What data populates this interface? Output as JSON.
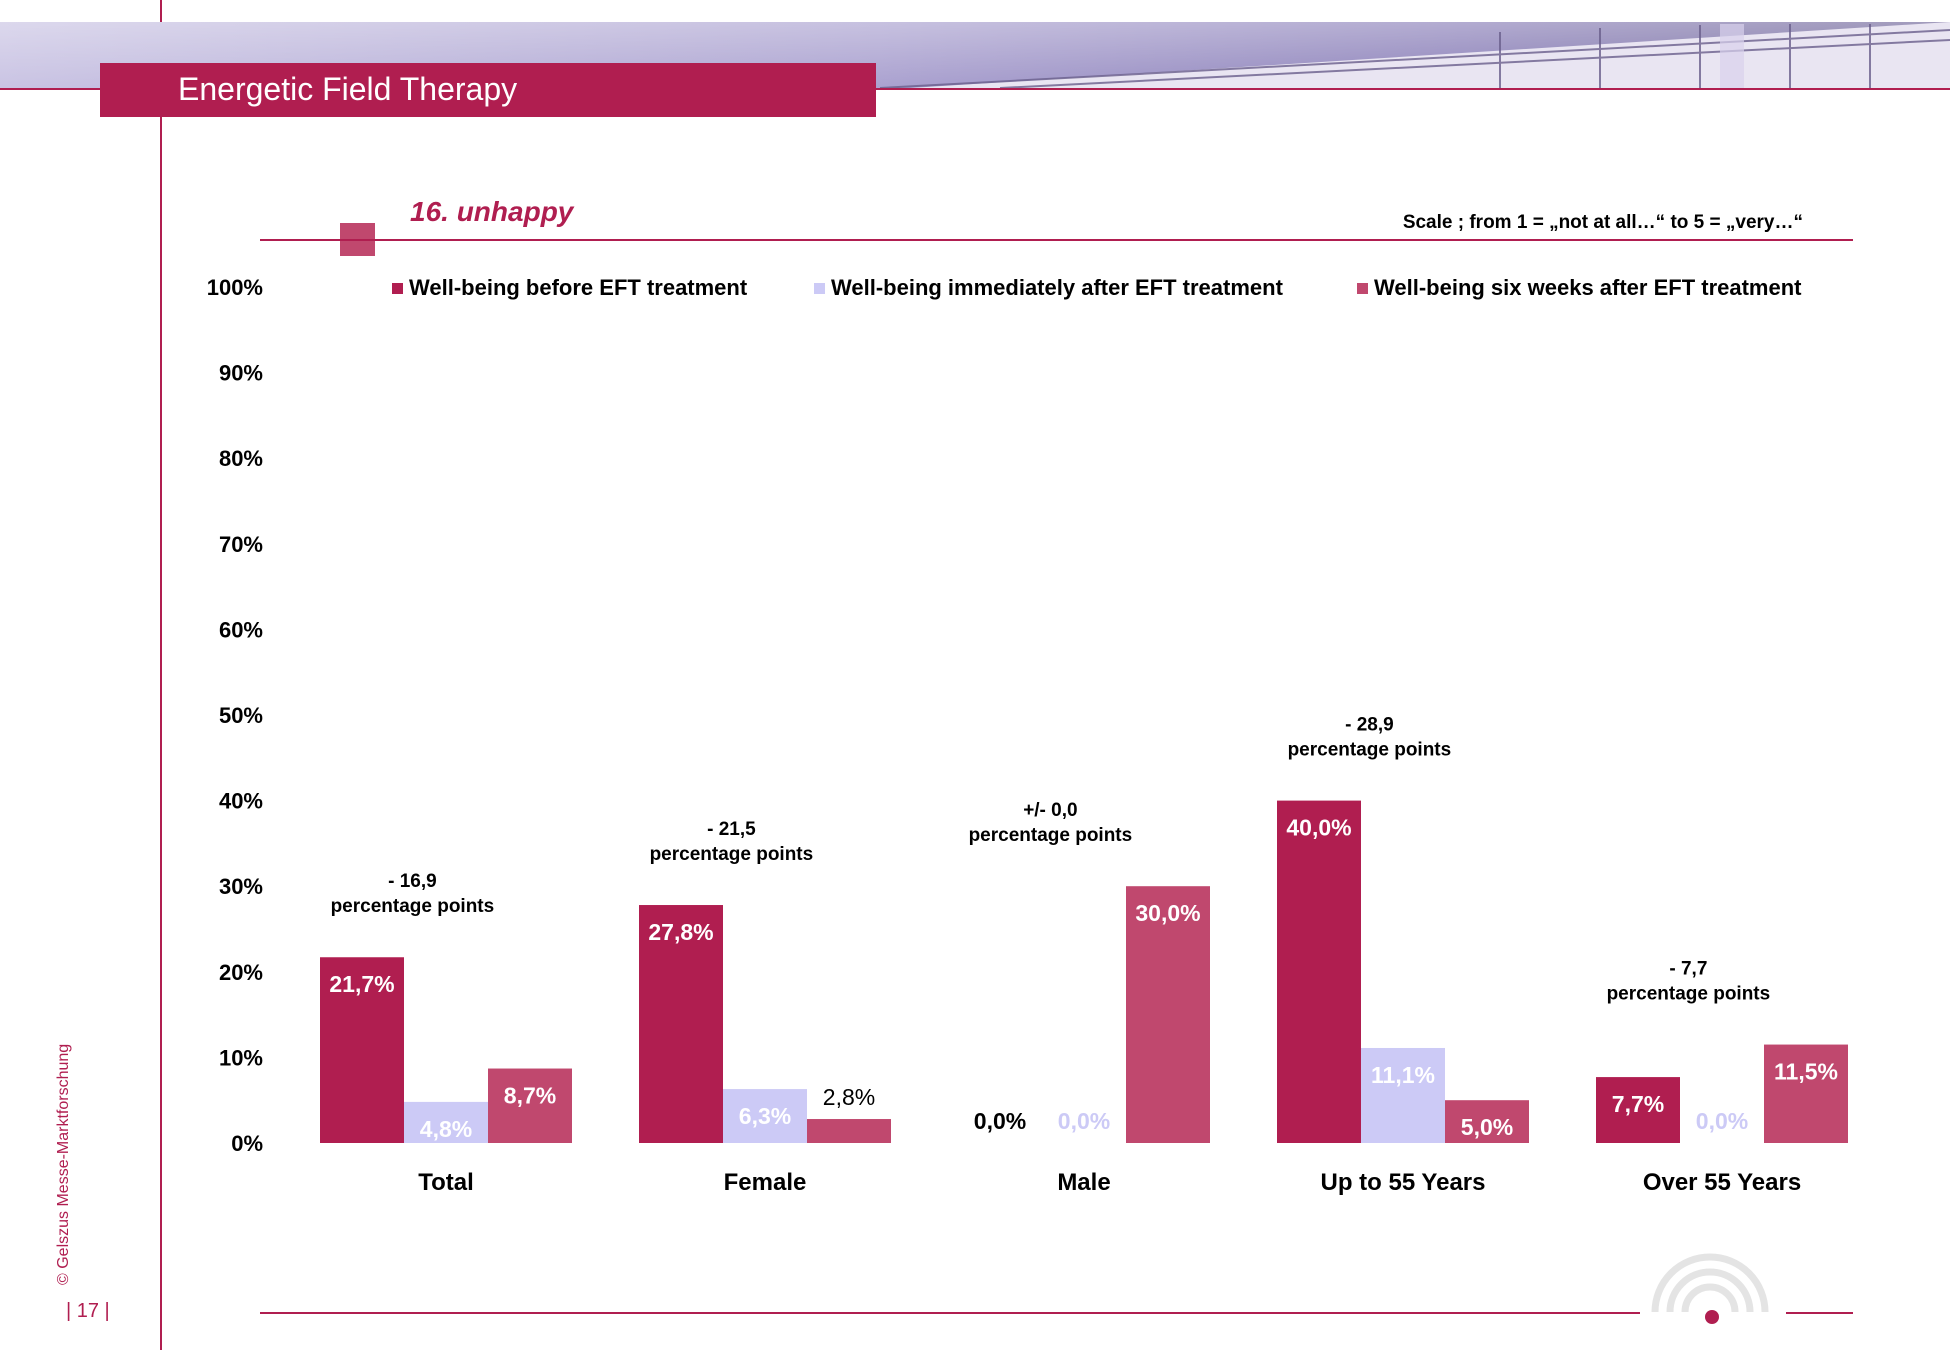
{
  "header": {
    "title": "Energetic Field Therapy",
    "subtitle": "16. unhappy",
    "scale_note": "Scale ; from 1 = „not at all…“  to 5 = „very…“"
  },
  "footer": {
    "copyright": "© Gelszus Messe-Marktforschung",
    "page_number": "| 17 |"
  },
  "colors": {
    "accent": "#b01e50",
    "before": "#b01e50",
    "immediately": "#cccaf6",
    "six_weeks": "#c0486e"
  },
  "chart_data": {
    "type": "bar",
    "categories": [
      "Total",
      "Female",
      "Male",
      "Up to 55 Years",
      "Over 55 Years"
    ],
    "series": [
      {
        "name": "Well-being before EFT treatment",
        "values": [
          21.7,
          27.8,
          0.0,
          40.0,
          7.7
        ],
        "labels": [
          "21,7%",
          "27,8%",
          "0,0%",
          "40,0%",
          "7,7%"
        ]
      },
      {
        "name": "Well-being immediately after EFT treatment",
        "values": [
          4.8,
          6.3,
          0.0,
          11.1,
          0.0
        ],
        "labels": [
          "4,8%",
          "6,3%",
          "0,0%",
          "11,1%",
          "0,0%"
        ]
      },
      {
        "name": "Well-being six weeks after EFT treatment",
        "values": [
          8.7,
          2.8,
          30.0,
          5.0,
          11.5
        ],
        "labels": [
          "8,7%",
          "2,8%",
          "30,0%",
          "5,0%",
          "11,5%"
        ]
      }
    ],
    "annotations": [
      {
        "line1": "- 16,9",
        "line2": "percentage points"
      },
      {
        "line1": "- 21,5",
        "line2": "percentage points"
      },
      {
        "line1": "+/- 0,0",
        "line2": "percentage points"
      },
      {
        "line1": "- 28,9",
        "line2": "percentage points"
      },
      {
        "line1": "- 7,7",
        "line2": "percentage points"
      }
    ],
    "y_ticks": [
      "0%",
      "10%",
      "20%",
      "30%",
      "40%",
      "50%",
      "60%",
      "70%",
      "80%",
      "90%",
      "100%"
    ],
    "ylim": [
      0,
      100
    ],
    "grid": false,
    "legend_position": "top"
  }
}
